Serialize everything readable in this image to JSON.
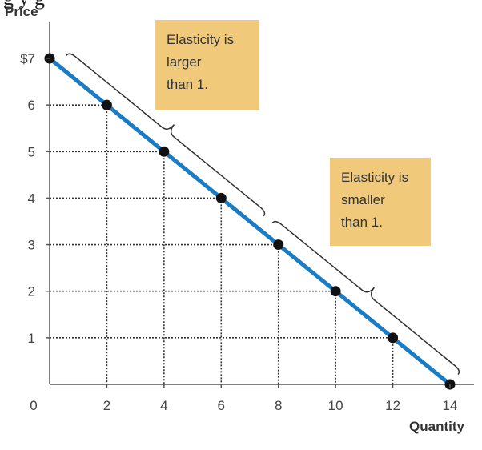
{
  "chart_data": {
    "type": "line",
    "xlabel": "Quantity",
    "ylabel": "Price",
    "xlim": [
      0,
      14
    ],
    "ylim": [
      0,
      7
    ],
    "x_ticks": [
      "2",
      "4",
      "6",
      "8",
      "10",
      "12",
      "14"
    ],
    "y_ticks": [
      "1",
      "2",
      "3",
      "4",
      "5",
      "6",
      "$7"
    ],
    "origin_label": "0",
    "points": [
      {
        "x": 0,
        "y": 7
      },
      {
        "x": 2,
        "y": 6
      },
      {
        "x": 4,
        "y": 5
      },
      {
        "x": 6,
        "y": 4
      },
      {
        "x": 8,
        "y": 3
      },
      {
        "x": 10,
        "y": 2
      },
      {
        "x": 12,
        "y": 1
      },
      {
        "x": 14,
        "y": 0
      }
    ],
    "line_color": "#1a7cc4",
    "annotations": [
      {
        "lines": [
          "Elasticity is",
          "larger",
          "than 1."
        ],
        "range_x": [
          0,
          7
        ],
        "box_color": "#f1c97a"
      },
      {
        "lines": [
          "Elasticity is",
          "smaller",
          "than 1."
        ],
        "range_x": [
          7,
          14
        ],
        "box_color": "#f1c97a"
      }
    ]
  },
  "cropped_heading_fragment": "g                        y      g"
}
